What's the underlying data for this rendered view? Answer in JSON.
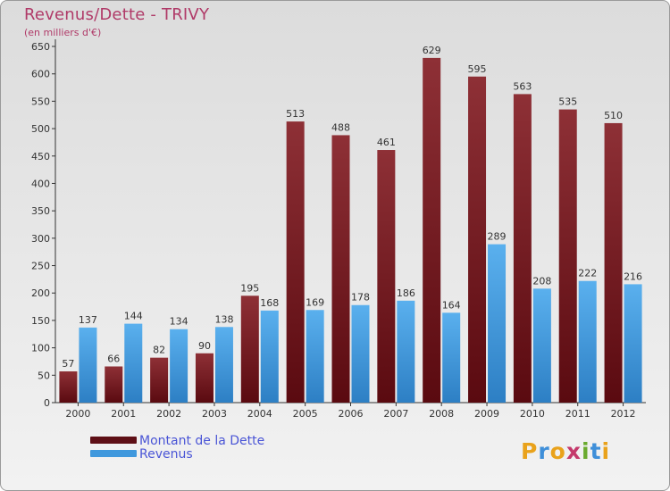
{
  "header": {
    "title": "Revenus/Dette - TRIVY",
    "subtitle": "(en milliers d'€)"
  },
  "chart_data": {
    "type": "bar",
    "categories": [
      "2000",
      "2001",
      "2002",
      "2003",
      "2004",
      "2005",
      "2006",
      "2007",
      "2008",
      "2009",
      "2010",
      "2011",
      "2012"
    ],
    "series": [
      {
        "name": "Montant de la Dette",
        "color": "#7a1c22",
        "values": [
          57,
          66,
          82,
          90,
          195,
          513,
          488,
          461,
          629,
          595,
          563,
          535,
          510
        ]
      },
      {
        "name": "Revenus",
        "color": "#3f98dd",
        "values": [
          137,
          144,
          134,
          138,
          168,
          169,
          178,
          186,
          164,
          289,
          208,
          222,
          216
        ]
      }
    ],
    "ylim": [
      0,
      650
    ],
    "yticks": [
      0,
      50,
      100,
      150,
      200,
      250,
      300,
      350,
      400,
      450,
      500,
      550,
      600,
      650
    ],
    "grid": false,
    "legend_position": "bottom-left"
  },
  "logo": {
    "letters": [
      "P",
      "r",
      "o",
      "x",
      "i",
      "t",
      "i"
    ]
  }
}
